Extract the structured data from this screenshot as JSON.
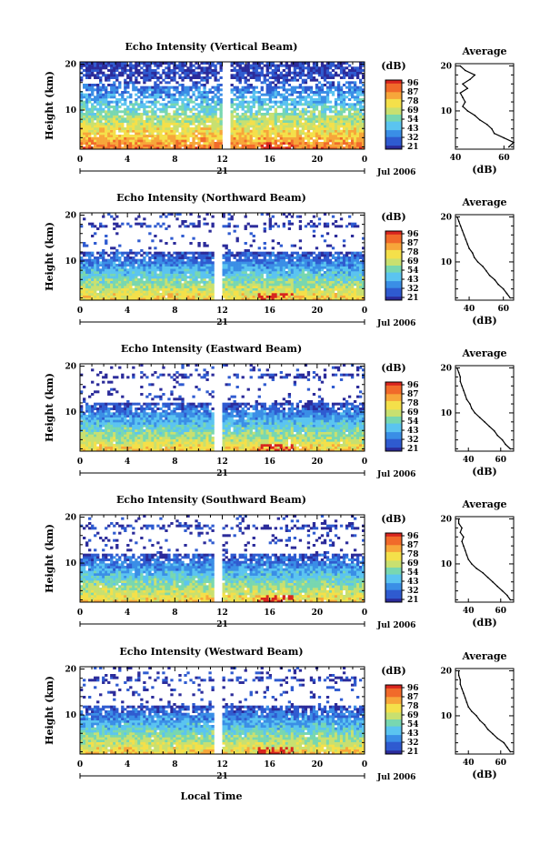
{
  "figure": {
    "xlabel": "Local Time",
    "date_label": "Jul 2006",
    "day_label": "21",
    "colorbar_unit": "(dB)",
    "colorbar_ticks": [
      "96",
      "87",
      "78",
      "69",
      "54",
      "43",
      "32",
      "21"
    ],
    "colormap": [
      "#2b2b9a",
      "#2f5bd0",
      "#3a8ee6",
      "#5bc4f0",
      "#78d7b0",
      "#c8e070",
      "#f4e04a",
      "#f7a63a",
      "#f16a2a",
      "#d8241e"
    ]
  },
  "chart_data": [
    {
      "type": "heatmap",
      "title": "Echo Intensity (Vertical Beam)",
      "ylabel": "Height (km)",
      "xticks": [
        "0",
        "4",
        "8",
        "12",
        "16",
        "20",
        "0"
      ],
      "yticks": [
        "20",
        "10"
      ],
      "xlim": [
        0,
        24
      ],
      "ylim": [
        1.5,
        20.5
      ],
      "gap": [
        11.9,
        12.6
      ],
      "profile": {
        "title": "Average",
        "xlabel": "(dB)",
        "xticks": [
          "40",
          "60"
        ],
        "xlim": [
          40,
          64
        ],
        "heights": [
          2,
          3,
          4,
          5,
          6,
          7,
          8,
          9,
          10,
          11,
          12,
          13,
          14,
          15,
          16,
          17,
          18,
          19,
          20
        ],
        "values": [
          62,
          64,
          60,
          56,
          55,
          53,
          50,
          48,
          45,
          43,
          44,
          43,
          42,
          45,
          43,
          46,
          48,
          44,
          42
        ]
      }
    },
    {
      "type": "heatmap",
      "title": "Echo Intensity (Northward Beam)",
      "ylabel": "Height (km)",
      "xticks": [
        "0",
        "4",
        "8",
        "12",
        "16",
        "20",
        "0"
      ],
      "yticks": [
        "20",
        "10"
      ],
      "xlim": [
        0,
        24
      ],
      "ylim": [
        1.5,
        20.5
      ],
      "gap": [
        11.3,
        12.1
      ],
      "profile": {
        "title": "Average",
        "xlabel": "(dB)",
        "xticks": [
          "40",
          "60"
        ],
        "xlim": [
          32,
          66
        ],
        "heights": [
          2,
          3,
          4,
          5,
          6,
          7,
          8,
          9,
          10,
          11,
          12,
          13,
          14,
          15,
          16,
          17,
          18,
          19,
          20
        ],
        "values": [
          64,
          62,
          60,
          57,
          55,
          52,
          50,
          48,
          45,
          43,
          42,
          40,
          39,
          38,
          37,
          36,
          35,
          34,
          33
        ]
      }
    },
    {
      "type": "heatmap",
      "title": "Echo Intensity (Eastward Beam)",
      "ylabel": "Height (km)",
      "xticks": [
        "0",
        "4",
        "8",
        "12",
        "16",
        "20",
        "0"
      ],
      "yticks": [
        "20",
        "10"
      ],
      "xlim": [
        0,
        24
      ],
      "ylim": [
        1.5,
        20.5
      ],
      "gap": [
        11.3,
        12.1
      ],
      "profile": {
        "title": "Average",
        "xlabel": "(dB)",
        "xticks": [
          "40",
          "60"
        ],
        "xlim": [
          32,
          68
        ],
        "heights": [
          2,
          3,
          4,
          5,
          6,
          7,
          8,
          9,
          10,
          11,
          12,
          13,
          14,
          15,
          16,
          17,
          18,
          19,
          20
        ],
        "values": [
          66,
          63,
          61,
          58,
          56,
          53,
          50,
          47,
          44,
          42,
          41,
          39,
          38,
          37,
          36,
          35,
          35,
          34,
          33
        ]
      }
    },
    {
      "type": "heatmap",
      "title": "Echo Intensity (Southward Beam)",
      "ylabel": "Height (km)",
      "xticks": [
        "0",
        "4",
        "8",
        "12",
        "16",
        "20",
        "0"
      ],
      "yticks": [
        "20",
        "10"
      ],
      "xlim": [
        0,
        24
      ],
      "ylim": [
        1.5,
        20.5
      ],
      "gap": [
        11.3,
        12.1
      ],
      "profile": {
        "title": "Average",
        "xlabel": "(dB)",
        "xticks": [
          "40",
          "60"
        ],
        "xlim": [
          32,
          68
        ],
        "heights": [
          2,
          3,
          4,
          5,
          6,
          7,
          8,
          9,
          10,
          11,
          12,
          13,
          14,
          15,
          16,
          17,
          18,
          19,
          20
        ],
        "values": [
          66,
          64,
          61,
          58,
          55,
          52,
          49,
          45,
          42,
          40,
          39,
          38,
          37,
          36,
          37,
          35,
          36,
          34,
          34
        ]
      }
    },
    {
      "type": "heatmap",
      "title": "Echo Intensity (Westward Beam)",
      "ylabel": "Height (km)",
      "xticks": [
        "0",
        "4",
        "8",
        "12",
        "16",
        "20",
        "0"
      ],
      "yticks": [
        "20",
        "10"
      ],
      "xlim": [
        0,
        24
      ],
      "ylim": [
        1.5,
        20.5
      ],
      "gap": [
        11.3,
        12.1
      ],
      "profile": {
        "title": "Average",
        "xlabel": "(dB)",
        "xticks": [
          "40",
          "60"
        ],
        "xlim": [
          32,
          68
        ],
        "heights": [
          2,
          3,
          4,
          5,
          6,
          7,
          8,
          9,
          10,
          11,
          12,
          13,
          14,
          15,
          16,
          17,
          18,
          19,
          20
        ],
        "values": [
          66,
          64,
          62,
          58,
          55,
          52,
          50,
          47,
          45,
          42,
          40,
          39,
          38,
          37,
          36,
          35,
          35,
          34,
          34
        ]
      }
    }
  ]
}
